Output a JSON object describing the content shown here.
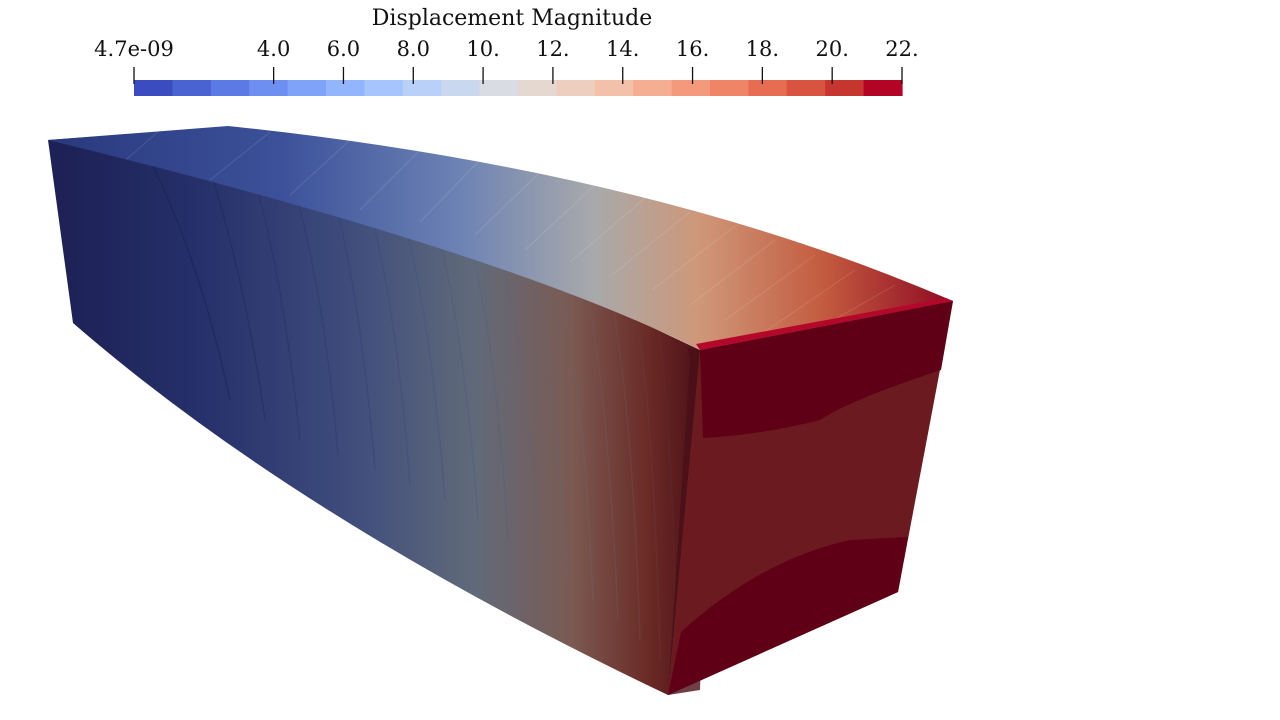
{
  "colorbar": {
    "title": "Displacement Magnitude",
    "min_label": "4.7e-09",
    "max_label": "22.",
    "ticks": [
      {
        "label": "4.7e-09",
        "value": 4.7e-09
      },
      {
        "label": "4.0",
        "value": 4.0
      },
      {
        "label": "6.0",
        "value": 6.0
      },
      {
        "label": "8.0",
        "value": 8.0
      },
      {
        "label": "10.",
        "value": 10.0
      },
      {
        "label": "12.",
        "value": 12.0
      },
      {
        "label": "14.",
        "value": 14.0
      },
      {
        "label": "16.",
        "value": 16.0
      },
      {
        "label": "18.",
        "value": 18.0
      },
      {
        "label": "20.",
        "value": 20.0
      },
      {
        "label": "22.",
        "value": 22.0
      }
    ],
    "range": [
      4.7e-09,
      22.0
    ],
    "swatches": [
      "#3b4cc0",
      "#4a63d3",
      "#5b7ae5",
      "#6d8ff1",
      "#80a3fa",
      "#93b5fe",
      "#a6c4fe",
      "#b9d0f9",
      "#cad8ef",
      "#d9dce2",
      "#e5d8d1",
      "#eecebf",
      "#f3c0a9",
      "#f6ae93",
      "#f4997c",
      "#ef8466",
      "#e66c52",
      "#d85340",
      "#c7352f",
      "#b40426"
    ]
  },
  "beam": {
    "palette": [
      "#1f245a",
      "#2b3b77",
      "#55678a",
      "#7a6d6f",
      "#a8513f",
      "#7a1520",
      "#5f0017"
    ],
    "end_face_colors": [
      "#5f0017",
      "#6b1a1f"
    ]
  }
}
